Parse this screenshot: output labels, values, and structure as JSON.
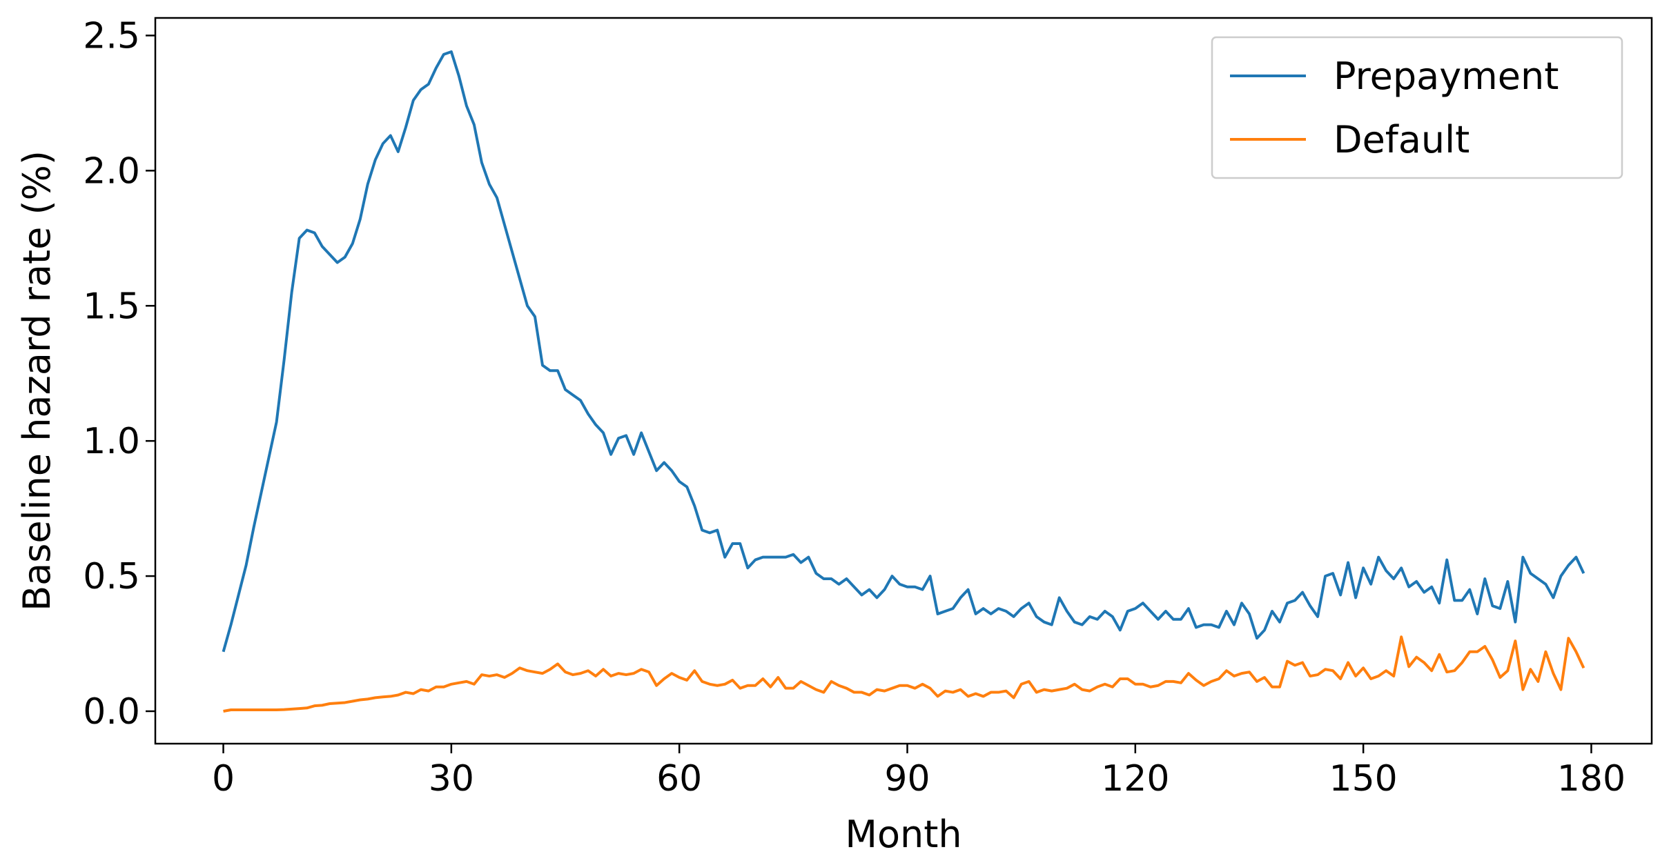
{
  "chart_data": {
    "type": "line",
    "xlabel": "Month",
    "ylabel": "Baseline hazard rate (%)",
    "x": [
      0,
      1,
      2,
      3,
      4,
      5,
      6,
      7,
      8,
      9,
      10,
      11,
      12,
      13,
      14,
      15,
      16,
      17,
      18,
      19,
      20,
      21,
      22,
      23,
      24,
      25,
      26,
      27,
      28,
      29,
      30,
      31,
      32,
      33,
      34,
      35,
      36,
      37,
      38,
      39,
      40,
      41,
      42,
      43,
      44,
      45,
      46,
      47,
      48,
      49,
      50,
      51,
      52,
      53,
      54,
      55,
      56,
      57,
      58,
      59,
      60,
      61,
      62,
      63,
      64,
      65,
      66,
      67,
      68,
      69,
      70,
      71,
      72,
      73,
      74,
      75,
      76,
      77,
      78,
      79,
      80,
      81,
      82,
      83,
      84,
      85,
      86,
      87,
      88,
      89,
      90,
      91,
      92,
      93,
      94,
      95,
      96,
      97,
      98,
      99,
      100,
      101,
      102,
      103,
      104,
      105,
      106,
      107,
      108,
      109,
      110,
      111,
      112,
      113,
      114,
      115,
      116,
      117,
      118,
      119,
      120,
      121,
      122,
      123,
      124,
      125,
      126,
      127,
      128,
      129,
      130,
      131,
      132,
      133,
      134,
      135,
      136,
      137,
      138,
      139,
      140,
      141,
      142,
      143,
      144,
      145,
      146,
      147,
      148,
      149,
      150,
      151,
      152,
      153,
      154,
      155,
      156,
      157,
      158,
      159,
      160,
      161,
      162,
      163,
      164,
      165,
      166,
      167,
      168,
      169,
      170,
      171,
      172,
      173,
      174,
      175,
      176,
      177,
      178,
      179
    ],
    "series": [
      {
        "name": "Prepayment",
        "color": "#1f77b4",
        "values": [
          0.22,
          0.32,
          0.43,
          0.54,
          0.68,
          0.81,
          0.94,
          1.07,
          1.3,
          1.55,
          1.75,
          1.78,
          1.77,
          1.72,
          1.69,
          1.66,
          1.68,
          1.73,
          1.82,
          1.95,
          2.04,
          2.1,
          2.13,
          2.07,
          2.16,
          2.26,
          2.3,
          2.32,
          2.38,
          2.43,
          2.44,
          2.35,
          2.24,
          2.17,
          2.03,
          1.95,
          1.9,
          1.8,
          1.7,
          1.6,
          1.5,
          1.46,
          1.28,
          1.26,
          1.26,
          1.19,
          1.17,
          1.15,
          1.1,
          1.06,
          1.03,
          0.95,
          1.01,
          1.02,
          0.95,
          1.03,
          0.96,
          0.89,
          0.92,
          0.89,
          0.85,
          0.83,
          0.76,
          0.67,
          0.66,
          0.67,
          0.57,
          0.62,
          0.62,
          0.53,
          0.56,
          0.57,
          0.57,
          0.57,
          0.57,
          0.58,
          0.55,
          0.57,
          0.51,
          0.49,
          0.49,
          0.47,
          0.49,
          0.46,
          0.43,
          0.45,
          0.42,
          0.45,
          0.5,
          0.47,
          0.46,
          0.46,
          0.45,
          0.5,
          0.36,
          0.37,
          0.38,
          0.42,
          0.45,
          0.36,
          0.38,
          0.36,
          0.38,
          0.37,
          0.35,
          0.38,
          0.4,
          0.35,
          0.33,
          0.32,
          0.42,
          0.37,
          0.33,
          0.32,
          0.35,
          0.34,
          0.37,
          0.35,
          0.3,
          0.37,
          0.38,
          0.4,
          0.37,
          0.34,
          0.37,
          0.34,
          0.34,
          0.38,
          0.31,
          0.32,
          0.32,
          0.31,
          0.37,
          0.32,
          0.4,
          0.36,
          0.27,
          0.3,
          0.37,
          0.33,
          0.4,
          0.41,
          0.44,
          0.39,
          0.35,
          0.5,
          0.51,
          0.43,
          0.55,
          0.42,
          0.53,
          0.47,
          0.57,
          0.52,
          0.49,
          0.53,
          0.46,
          0.48,
          0.44,
          0.46,
          0.4,
          0.56,
          0.41,
          0.41,
          0.45,
          0.36,
          0.49,
          0.39,
          0.38,
          0.48,
          0.33,
          0.57,
          0.51,
          0.49,
          0.47,
          0.42,
          0.5,
          0.54,
          0.57,
          0.51
        ]
      },
      {
        "name": "Default",
        "color": "#ff7f0e",
        "values": [
          0.0,
          0.005,
          0.005,
          0.005,
          0.005,
          0.005,
          0.005,
          0.005,
          0.006,
          0.008,
          0.01,
          0.012,
          0.02,
          0.022,
          0.028,
          0.03,
          0.032,
          0.037,
          0.042,
          0.045,
          0.05,
          0.053,
          0.055,
          0.06,
          0.07,
          0.065,
          0.08,
          0.075,
          0.09,
          0.09,
          0.1,
          0.105,
          0.11,
          0.1,
          0.135,
          0.13,
          0.135,
          0.125,
          0.14,
          0.16,
          0.15,
          0.145,
          0.14,
          0.155,
          0.175,
          0.145,
          0.135,
          0.14,
          0.15,
          0.13,
          0.155,
          0.13,
          0.14,
          0.135,
          0.14,
          0.155,
          0.145,
          0.095,
          0.12,
          0.14,
          0.125,
          0.115,
          0.15,
          0.11,
          0.1,
          0.095,
          0.1,
          0.115,
          0.085,
          0.095,
          0.095,
          0.12,
          0.09,
          0.125,
          0.085,
          0.085,
          0.11,
          0.095,
          0.08,
          0.07,
          0.11,
          0.095,
          0.085,
          0.07,
          0.07,
          0.06,
          0.08,
          0.075,
          0.085,
          0.095,
          0.095,
          0.085,
          0.1,
          0.085,
          0.055,
          0.075,
          0.07,
          0.08,
          0.055,
          0.065,
          0.055,
          0.07,
          0.07,
          0.075,
          0.05,
          0.1,
          0.11,
          0.07,
          0.08,
          0.075,
          0.08,
          0.085,
          0.1,
          0.08,
          0.075,
          0.09,
          0.1,
          0.09,
          0.12,
          0.12,
          0.1,
          0.1,
          0.09,
          0.095,
          0.11,
          0.11,
          0.105,
          0.14,
          0.115,
          0.095,
          0.11,
          0.12,
          0.15,
          0.13,
          0.14,
          0.145,
          0.11,
          0.125,
          0.09,
          0.09,
          0.185,
          0.17,
          0.18,
          0.13,
          0.135,
          0.155,
          0.15,
          0.12,
          0.18,
          0.13,
          0.16,
          0.12,
          0.13,
          0.15,
          0.13,
          0.275,
          0.165,
          0.2,
          0.18,
          0.15,
          0.21,
          0.145,
          0.15,
          0.18,
          0.22,
          0.22,
          0.24,
          0.19,
          0.125,
          0.15,
          0.26,
          0.08,
          0.155,
          0.11,
          0.22,
          0.14,
          0.08,
          0.27,
          0.22,
          0.16
        ]
      }
    ],
    "xlim": [
      -8.95,
      187.95
    ],
    "ylim": [
      -0.12,
      2.565
    ],
    "xticks": [
      0,
      30,
      60,
      90,
      120,
      150,
      180
    ],
    "yticks": [
      {
        "value": 0,
        "label": "0.0"
      },
      0.5,
      {
        "value": 1,
        "label": "1.0"
      },
      1.5,
      {
        "value": 2,
        "label": "2.0"
      },
      2.5
    ],
    "legend": "upper right"
  }
}
